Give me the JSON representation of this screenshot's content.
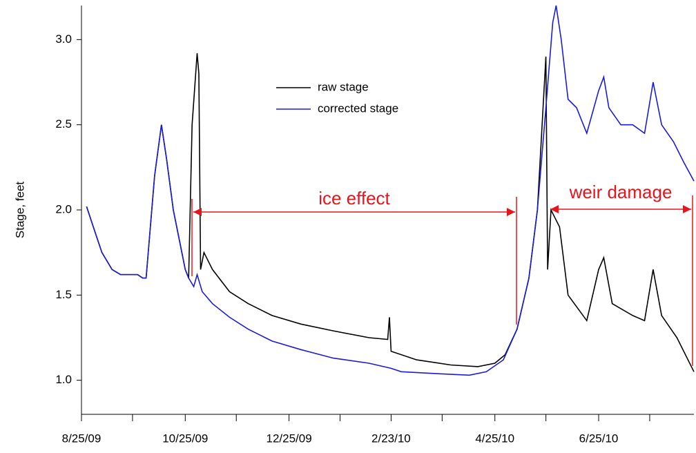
{
  "chart_data": {
    "type": "line",
    "ylabel": "Stage, feet",
    "xlim": [
      "8/25/09",
      "8/20/10"
    ],
    "xticks": [
      "8/25/09",
      {
        "value": "9/24/09",
        "label": null
      },
      "10/25/09",
      {
        "value": "11/24/09",
        "label": null
      },
      "12/25/09",
      {
        "value": "1/24/10",
        "label": null
      },
      "2/23/10",
      {
        "value": "3/25/10",
        "label": null
      },
      "4/25/10",
      {
        "value": "5/25/10",
        "label": null
      },
      "6/25/10",
      {
        "value": "7/25/10",
        "label": null
      }
    ],
    "ylim": [
      0.8,
      3.2
    ],
    "yticks": [
      {
        "value": 1,
        "label": "1.0"
      },
      {
        "value": 1.5,
        "label": "1.5"
      },
      {
        "value": 2,
        "label": "2.0"
      },
      {
        "value": 2.5,
        "label": "2.5"
      },
      {
        "value": 3,
        "label": "3.0"
      }
    ],
    "legend": "upper-center",
    "annotations": [
      "ice effect",
      "weir damage"
    ],
    "series": [
      {
        "name": "raw stage",
        "color": "#000000",
        "x": [
          "8/28/09",
          "9/1/09",
          "9/6/09",
          "9/12/09",
          "9/17/09",
          "9/22/09",
          "9/27/09",
          "9/30/09",
          "10/2/09",
          "10/7/09",
          "10/11/09",
          "10/14/09",
          "10/18/09",
          "10/22/09",
          "10/25/09",
          "10/27/09",
          "10/29/09",
          "11/1/09",
          "11/2/09",
          "11/3/09",
          "11/5/09",
          "11/10/09",
          "11/20/09",
          "12/1/09",
          "12/15/09",
          "1/1/10",
          "1/20/10",
          "2/10/10",
          "2/21/10",
          "2/22/10",
          "2/23/10",
          "3/10/10",
          "3/30/10",
          "4/15/10",
          "4/25/10",
          "5/1/10",
          "5/8/10",
          "5/15/10",
          "5/20/10",
          "5/25/10",
          "5/26/10",
          "5/28/10",
          "6/2/10",
          "6/7/10",
          "6/18/10",
          "6/25/10",
          "6/28/10",
          "7/3/10",
          "7/15/10",
          "7/22/10",
          "7/27/10",
          "8/1/10",
          "8/10/10",
          "8/20/10"
        ],
        "values": [
          2.02,
          1.9,
          1.75,
          1.65,
          1.62,
          1.62,
          1.62,
          1.6,
          1.6,
          2.2,
          2.5,
          2.3,
          2.0,
          1.8,
          1.65,
          1.6,
          2.5,
          2.92,
          2.8,
          1.65,
          1.75,
          1.65,
          1.52,
          1.45,
          1.38,
          1.33,
          1.29,
          1.25,
          1.24,
          1.37,
          1.17,
          1.12,
          1.09,
          1.08,
          1.1,
          1.15,
          1.3,
          1.6,
          2.0,
          2.9,
          1.65,
          2.0,
          1.9,
          1.5,
          1.35,
          1.65,
          1.72,
          1.45,
          1.38,
          1.35,
          1.65,
          1.38,
          1.25,
          1.05
        ]
      },
      {
        "name": "corrected stage",
        "color": "#1a1adb",
        "x": [
          "8/28/09",
          "9/1/09",
          "9/6/09",
          "9/12/09",
          "9/17/09",
          "9/22/09",
          "9/27/09",
          "9/30/09",
          "10/2/09",
          "10/7/09",
          "10/11/09",
          "10/14/09",
          "10/18/09",
          "10/22/09",
          "10/25/09",
          "10/27/09",
          "10/30/09",
          "11/1/09",
          "11/4/09",
          "11/10/09",
          "11/20/09",
          "12/1/09",
          "12/15/09",
          "1/1/10",
          "1/20/10",
          "2/10/10",
          "2/23/10",
          "3/1/10",
          "3/20/10",
          "4/10/10",
          "4/20/10",
          "4/30/10",
          "5/8/10",
          "5/15/10",
          "5/20/10",
          "5/25/10",
          "5/29/10",
          "5/31/10",
          "6/3/10",
          "6/7/10",
          "6/12/10",
          "6/18/10",
          "6/25/10",
          "6/28/10",
          "7/1/10",
          "7/8/10",
          "7/15/10",
          "7/22/10",
          "7/27/10",
          "8/1/10",
          "8/8/10",
          "8/14/10",
          "8/20/10"
        ],
        "values": [
          2.02,
          1.9,
          1.75,
          1.65,
          1.62,
          1.62,
          1.62,
          1.6,
          1.6,
          2.2,
          2.5,
          2.3,
          2.0,
          1.8,
          1.65,
          1.6,
          1.55,
          1.62,
          1.52,
          1.45,
          1.37,
          1.3,
          1.23,
          1.18,
          1.13,
          1.1,
          1.07,
          1.05,
          1.04,
          1.03,
          1.05,
          1.12,
          1.3,
          1.6,
          2.0,
          2.6,
          3.1,
          3.2,
          3.0,
          2.65,
          2.6,
          2.45,
          2.7,
          2.78,
          2.6,
          2.5,
          2.5,
          2.45,
          2.75,
          2.5,
          2.4,
          2.28,
          2.17
        ]
      }
    ]
  }
}
